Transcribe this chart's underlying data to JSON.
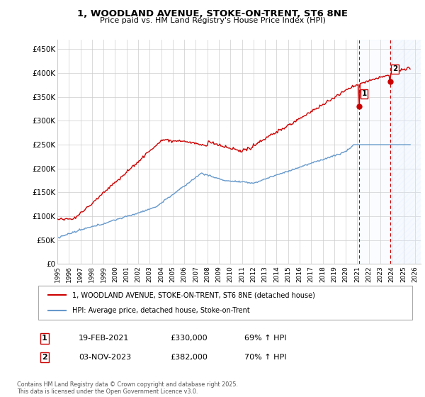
{
  "title": "1, WOODLAND AVENUE, STOKE-ON-TRENT, ST6 8NE",
  "subtitle": "Price paid vs. HM Land Registry's House Price Index (HPI)",
  "ylabel_ticks": [
    "£0",
    "£50K",
    "£100K",
    "£150K",
    "£200K",
    "£250K",
    "£300K",
    "£350K",
    "£400K",
    "£450K"
  ],
  "ytick_values": [
    0,
    50000,
    100000,
    150000,
    200000,
    250000,
    300000,
    350000,
    400000,
    450000
  ],
  "ylim": [
    0,
    470000
  ],
  "xlim_start": 1995.0,
  "xlim_end": 2026.5,
  "sale1_date": 2021.13,
  "sale1_price": 330000,
  "sale1_label": "1",
  "sale2_date": 2023.84,
  "sale2_price": 382000,
  "sale2_label": "2",
  "legend_line1": "1, WOODLAND AVENUE, STOKE-ON-TRENT, ST6 8NE (detached house)",
  "legend_line2": "HPI: Average price, detached house, Stoke-on-Trent",
  "table_row1": [
    "1",
    "19-FEB-2021",
    "£330,000",
    "69% ↑ HPI"
  ],
  "table_row2": [
    "2",
    "03-NOV-2023",
    "£382,000",
    "70% ↑ HPI"
  ],
  "footnote": "Contains HM Land Registry data © Crown copyright and database right 2025.\nThis data is licensed under the Open Government Licence v3.0.",
  "hpi_color": "#6699cc",
  "price_color": "#cc0000",
  "vline_color": "#cc0000",
  "bg_shade_color": "#ddeeff",
  "grid_color": "#cccccc",
  "background_color": "#ffffff"
}
